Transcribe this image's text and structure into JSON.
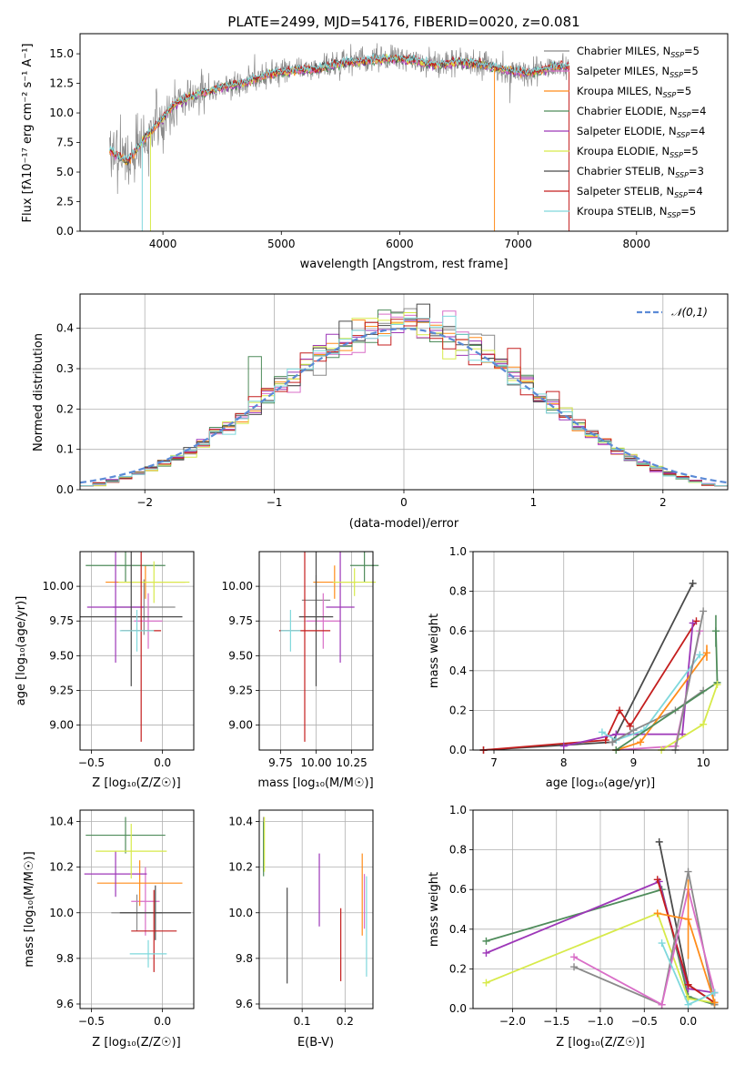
{
  "figure": {
    "title": "PLATE=2499, MJD=54176, FIBERID=0020, z=0.081"
  },
  "models": [
    {
      "name": "Chabrier MILES",
      "nssp": "5",
      "color": "#8a8a8a"
    },
    {
      "name": "Salpeter MILES",
      "nssp": "5",
      "color": "#d96ec7"
    },
    {
      "name": "Kroupa MILES",
      "nssp": "5",
      "color": "#ff8c1a"
    },
    {
      "name": "Chabrier ELODIE",
      "nssp": "4",
      "color": "#4f8c5b"
    },
    {
      "name": "Salpeter ELODIE",
      "nssp": "4",
      "color": "#9d37b8"
    },
    {
      "name": "Kroupa ELODIE",
      "nssp": "5",
      "color": "#d7ea4a"
    },
    {
      "name": "Chabrier STELIB",
      "nssp": "3",
      "color": "#4a4a4a"
    },
    {
      "name": "Salpeter STELIB",
      "nssp": "4",
      "color": "#c41e1e"
    },
    {
      "name": "Kroupa STELIB",
      "nssp": "5",
      "color": "#7fd8dc"
    }
  ],
  "nssp_label": "N",
  "nssp_sub": "SSP",
  "chart_data": [
    {
      "id": "spectrum",
      "type": "line",
      "xlabel": "wavelength [Angstrom, rest frame]",
      "ylabel": "Flux [fλ10⁻¹⁷ erg cm⁻² s⁻¹ A⁻¹]",
      "xlim": [
        3300,
        8770
      ],
      "ylim": [
        0,
        16.7
      ],
      "xticks": [
        4000,
        5000,
        6000,
        7000,
        8000
      ],
      "yticks": [
        0.0,
        2.5,
        5.0,
        7.5,
        10.0,
        12.5,
        15.0
      ],
      "continuum": {
        "x": [
          3550,
          3700,
          3850,
          4000,
          4100,
          4300,
          4500,
          4700,
          4900,
          5100,
          5300,
          5500,
          5700,
          5900,
          6100,
          6300,
          6500,
          6700,
          6900,
          7100,
          7300,
          7400
        ],
        "y": [
          6.8,
          5.9,
          7.9,
          9.6,
          10.8,
          11.6,
          12.2,
          12.6,
          13.3,
          13.6,
          13.7,
          14.2,
          14.4,
          14.6,
          14.5,
          14.1,
          14.3,
          14.1,
          13.6,
          13.4,
          13.9,
          14.0
        ]
      },
      "observed_range": [
        3550,
        7430
      ],
      "legend_position": "upper right"
    },
    {
      "id": "residuals",
      "type": "histogram",
      "xlabel": "(data-model)/error",
      "ylabel": "Normed distribution",
      "xlim": [
        -2.5,
        2.5
      ],
      "ylim": [
        0,
        0.485
      ],
      "xticks": [
        -2,
        -1,
        0,
        1,
        2
      ],
      "yticks": [
        0.0,
        0.1,
        0.2,
        0.3,
        0.4
      ],
      "bin_width": 0.1,
      "reference_label": "𝒩(0,1)",
      "reference_color": "#5b8ad6",
      "legend_position": "upper right",
      "grid": true,
      "outliers": [
        {
          "x": -1.15,
          "y": 0.33
        },
        {
          "x": 0.15,
          "y": 0.46
        },
        {
          "x": 0.35,
          "y": 0.43
        },
        {
          "x": 0.85,
          "y": 0.35
        }
      ]
    },
    {
      "id": "age_vs_Z",
      "type": "errorbar",
      "xlabel": "Z [log₁₀(Z/Z☉)]",
      "ylabel": "age [log₁₀(age/yr)]",
      "xlim": [
        -0.58,
        0.22
      ],
      "ylim": [
        8.82,
        10.25
      ],
      "xticks": [
        -0.5,
        0.0
      ],
      "yticks": [
        9.0,
        9.25,
        9.5,
        9.75,
        10.0
      ],
      "points": [
        {
          "model": 0,
          "x": -0.13,
          "xerr": 0.22,
          "y": 9.85,
          "yerr": 0.2
        },
        {
          "model": 1,
          "x": -0.1,
          "xerr": 0.1,
          "y": 9.75,
          "yerr": 0.2
        },
        {
          "model": 2,
          "x": -0.12,
          "xerr": 0.28,
          "y": 10.03,
          "yerr": 0.12
        },
        {
          "model": 3,
          "x": -0.26,
          "xerr": 0.28,
          "y": 10.15,
          "yerr": 0.12
        },
        {
          "model": 4,
          "x": -0.33,
          "xerr": 0.2,
          "y": 9.85,
          "yerr": 0.4
        },
        {
          "model": 5,
          "x": -0.06,
          "xerr": 0.25,
          "y": 10.03,
          "yerr": 0.15
        },
        {
          "model": 6,
          "x": -0.22,
          "xerr": 0.36,
          "y": 9.78,
          "yerr": 0.5
        },
        {
          "model": 7,
          "x": -0.15,
          "xerr": 0.14,
          "y": 9.68,
          "yerr": 0.8
        },
        {
          "model": 8,
          "x": -0.18,
          "xerr": 0.12,
          "y": 9.68,
          "yerr": 0.15
        }
      ]
    },
    {
      "id": "age_vs_mass",
      "type": "errorbar",
      "xlabel": "mass [log₁₀(M/M☉)]",
      "ylabel": "",
      "xlim": [
        9.6,
        10.4
      ],
      "ylim": [
        8.82,
        10.25
      ],
      "xticks": [
        9.75,
        10.0,
        10.25
      ],
      "yticks": [
        9.0,
        9.25,
        9.5,
        9.75,
        10.0
      ],
      "points": [
        {
          "model": 0,
          "x": 10.0,
          "xerr": 0.1,
          "y": 9.9,
          "yerr": 0.18
        },
        {
          "model": 1,
          "x": 10.05,
          "xerr": 0.12,
          "y": 9.75,
          "yerr": 0.2
        },
        {
          "model": 2,
          "x": 10.13,
          "xerr": 0.15,
          "y": 10.03,
          "yerr": 0.12
        },
        {
          "model": 3,
          "x": 10.34,
          "xerr": 0.1,
          "y": 10.15,
          "yerr": 0.12
        },
        {
          "model": 4,
          "x": 10.17,
          "xerr": 0.1,
          "y": 9.85,
          "yerr": 0.4
        },
        {
          "model": 5,
          "x": 10.27,
          "xerr": 0.15,
          "y": 10.03,
          "yerr": 0.1
        },
        {
          "model": 6,
          "x": 10.0,
          "xerr": 0.12,
          "y": 9.78,
          "yerr": 0.5
        },
        {
          "model": 7,
          "x": 9.92,
          "xerr": 0.18,
          "y": 9.68,
          "yerr": 0.8
        },
        {
          "model": 8,
          "x": 9.82,
          "xerr": 0.07,
          "y": 9.68,
          "yerr": 0.15
        }
      ]
    },
    {
      "id": "weight_vs_age",
      "type": "line",
      "xlabel": "age [log₁₀(age/yr)]",
      "ylabel": "mass weight",
      "xlim": [
        6.7,
        10.35
      ],
      "ylim": [
        0.0,
        1.0
      ],
      "xticks": [
        7,
        8,
        9,
        10
      ],
      "yticks": [
        0.0,
        0.2,
        0.4,
        0.6,
        0.8,
        1.0
      ],
      "series": [
        {
          "model": 6,
          "x": [
            6.85,
            8.7,
            9.85
          ],
          "y": [
            0.0,
            0.04,
            0.84
          ],
          "err": [
            null,
            null,
            null
          ]
        },
        {
          "model": 7,
          "x": [
            6.85,
            8.6,
            8.8,
            8.95,
            9.9
          ],
          "y": [
            0.0,
            0.05,
            0.2,
            0.12,
            0.65
          ],
          "err": [
            null,
            null,
            null,
            null,
            null
          ]
        },
        {
          "model": 4,
          "x": [
            8.0,
            8.75,
            9.7,
            9.85
          ],
          "y": [
            0.02,
            0.08,
            0.08,
            0.64
          ],
          "err": [
            null,
            null,
            null,
            null
          ]
        },
        {
          "model": 8,
          "x": [
            8.55,
            8.75,
            9.15,
            9.95
          ],
          "y": [
            0.09,
            0.05,
            0.1,
            0.48
          ],
          "err": [
            null,
            null,
            null,
            null
          ]
        },
        {
          "model": 0,
          "x": [
            8.7,
            9.0,
            9.6,
            10.0
          ],
          "y": [
            0.04,
            0.1,
            0.2,
            0.3
          ],
          "err": [
            null,
            null,
            null,
            null
          ]
        },
        {
          "model": 1,
          "x": [
            8.75,
            9.6,
            9.95
          ],
          "y": [
            0.0,
            0.02,
            0.6
          ],
          "err": [
            null,
            null,
            null
          ]
        },
        {
          "model": 2,
          "x": [
            8.75,
            9.1,
            10.05
          ],
          "y": [
            0.0,
            0.04,
            0.49
          ],
          "err": [
            null,
            null,
            0.04
          ]
        },
        {
          "model": 3,
          "x": [
            8.75,
            10.2,
            10.18
          ],
          "y": [
            0.0,
            0.34,
            0.6
          ],
          "err": [
            null,
            null,
            0.08
          ]
        },
        {
          "model": 5,
          "x": [
            9.4,
            10.0,
            10.2
          ],
          "y": [
            0.0,
            0.13,
            0.33
          ],
          "err": [
            null,
            null,
            null
          ]
        },
        {
          "model": 0,
          "x": [
            9.6,
            10.0
          ],
          "y": [
            0.0,
            0.7
          ],
          "err": [
            null,
            null
          ]
        }
      ]
    },
    {
      "id": "mass_vs_Z",
      "type": "errorbar",
      "xlabel": "Z [log₁₀(Z/Z☉)]",
      "ylabel": "mass [log₁₀(M/M☉)]",
      "xlim": [
        -0.58,
        0.22
      ],
      "ylim": [
        9.58,
        10.45
      ],
      "xticks": [
        -0.5,
        0.0
      ],
      "yticks": [
        9.6,
        9.8,
        10.0,
        10.2,
        10.4
      ],
      "points": [
        {
          "model": 0,
          "x": -0.18,
          "xerr": 0.18,
          "y": 10.0,
          "yerr": 0.08
        },
        {
          "model": 1,
          "x": -0.12,
          "xerr": 0.1,
          "y": 10.05,
          "yerr": 0.15
        },
        {
          "model": 2,
          "x": -0.16,
          "xerr": 0.3,
          "y": 10.13,
          "yerr": 0.1
        },
        {
          "model": 3,
          "x": -0.26,
          "xerr": 0.28,
          "y": 10.34,
          "yerr": 0.08
        },
        {
          "model": 4,
          "x": -0.33,
          "xerr": 0.22,
          "y": 10.17,
          "yerr": 0.1
        },
        {
          "model": 5,
          "x": -0.22,
          "xerr": 0.25,
          "y": 10.27,
          "yerr": 0.12
        },
        {
          "model": 6,
          "x": -0.05,
          "xerr": 0.25,
          "y": 10.0,
          "yerr": 0.12
        },
        {
          "model": 7,
          "x": -0.06,
          "xerr": 0.16,
          "y": 9.92,
          "yerr": 0.18
        },
        {
          "model": 8,
          "x": -0.1,
          "xerr": 0.13,
          "y": 9.82,
          "yerr": 0.06
        }
      ]
    },
    {
      "id": "mass_vs_ebv",
      "type": "errorbar",
      "xlabel": "E(B-V)",
      "ylabel": "",
      "xlim": [
        0.0,
        0.265
      ],
      "ylim": [
        9.58,
        10.45
      ],
      "xticks": [
        0.1,
        0.2
      ],
      "yticks": [
        9.6,
        9.8,
        10.0,
        10.2,
        10.4
      ],
      "points": [
        {
          "model": 0,
          "x": 0.01,
          "xerr": 0.0,
          "y": 10.3,
          "yerr": 0.12
        },
        {
          "model": 1,
          "x": 0.245,
          "xerr": 0.0,
          "y": 10.05,
          "yerr": 0.12
        },
        {
          "model": 2,
          "x": 0.24,
          "xerr": 0.0,
          "y": 10.08,
          "yerr": 0.18
        },
        {
          "model": 3,
          "x": 0.01,
          "xerr": 0.0,
          "y": 10.28,
          "yerr": 0.12
        },
        {
          "model": 4,
          "x": 0.14,
          "xerr": 0.0,
          "y": 10.1,
          "yerr": 0.16
        },
        {
          "model": 5,
          "x": 0.012,
          "xerr": 0.0,
          "y": 10.3,
          "yerr": 0.12
        },
        {
          "model": 6,
          "x": 0.065,
          "xerr": 0.0,
          "y": 9.9,
          "yerr": 0.21
        },
        {
          "model": 7,
          "x": 0.19,
          "xerr": 0.0,
          "y": 9.86,
          "yerr": 0.16
        },
        {
          "model": 8,
          "x": 0.25,
          "xerr": 0.0,
          "y": 9.94,
          "yerr": 0.22
        }
      ]
    },
    {
      "id": "weight_vs_Z",
      "type": "line",
      "xlabel": "Z [log₁₀(Z/Z☉)]",
      "ylabel": "mass weight",
      "xlim": [
        -2.45,
        0.45
      ],
      "ylim": [
        0.0,
        1.0
      ],
      "xticks": [
        -2.0,
        -1.5,
        -1.0,
        -0.5,
        0.0
      ],
      "yticks": [
        0.0,
        0.2,
        0.4,
        0.6,
        0.8,
        1.0
      ],
      "series": [
        {
          "model": 6,
          "x": [
            -0.33,
            0.0,
            0.3
          ],
          "y": [
            0.84,
            0.12,
            0.03
          ],
          "err": [
            null,
            null,
            null
          ]
        },
        {
          "model": 3,
          "x": [
            -2.3,
            -0.3,
            0.0,
            0.3
          ],
          "y": [
            0.34,
            0.6,
            0.06,
            0.02
          ],
          "err": [
            null,
            null,
            null,
            null
          ]
        },
        {
          "model": 4,
          "x": [
            -2.3,
            -0.33,
            0.0,
            0.3
          ],
          "y": [
            0.28,
            0.64,
            0.1,
            0.08
          ],
          "err": [
            null,
            null,
            null,
            null
          ]
        },
        {
          "model": 5,
          "x": [
            -2.3,
            -0.35,
            0.0,
            0.3
          ],
          "y": [
            0.13,
            0.48,
            0.05,
            0.03
          ],
          "err": [
            null,
            null,
            null,
            null
          ]
        },
        {
          "model": 7,
          "x": [
            -0.35,
            0.0,
            0.3
          ],
          "y": [
            0.65,
            0.12,
            0.03
          ],
          "err": [
            null,
            null,
            null
          ]
        },
        {
          "model": 0,
          "x": [
            -1.3,
            -0.3,
            0.0,
            0.3
          ],
          "y": [
            0.21,
            0.02,
            0.69,
            0.02
          ],
          "err": [
            null,
            null,
            null,
            null
          ]
        },
        {
          "model": 1,
          "x": [
            -1.3,
            -0.3,
            0.0,
            0.3
          ],
          "y": [
            0.26,
            0.02,
            0.6,
            0.08
          ],
          "err": [
            null,
            null,
            null,
            null
          ]
        },
        {
          "model": 2,
          "x": [
            -0.35,
            0.0,
            0.3
          ],
          "y": [
            0.48,
            0.45,
            0.03
          ],
          "err": [
            null,
            0.2,
            null
          ]
        },
        {
          "model": 8,
          "x": [
            -0.3,
            0.0,
            0.3
          ],
          "y": [
            0.33,
            0.02,
            0.08
          ],
          "err": [
            null,
            null,
            null
          ]
        }
      ]
    }
  ]
}
